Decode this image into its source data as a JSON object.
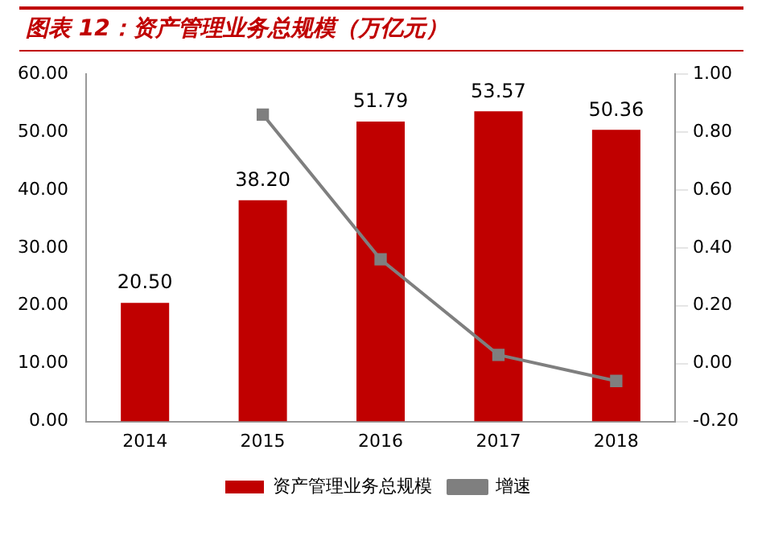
{
  "chart_data": {
    "type": "bar",
    "title": "图表 12：资产管理业务总规模（万亿元）",
    "categories": [
      "2014",
      "2015",
      "2016",
      "2017",
      "2018"
    ],
    "series": [
      {
        "name": "资产管理业务总规模",
        "color": "#c00000",
        "values": [
          20.5,
          38.2,
          51.79,
          53.57,
          50.36
        ],
        "value_labels": [
          "20.50",
          "38.20",
          "51.79",
          "53.57",
          "50.36"
        ]
      },
      {
        "name": "增速",
        "type": "line",
        "axis": "y2",
        "color": "#7f7f7f",
        "marker": "square",
        "values": [
          null,
          0.86,
          0.36,
          0.03,
          -0.06
        ]
      }
    ],
    "ylim": [
      0,
      60
    ],
    "yticks": [
      {
        "value": 0,
        "label": "0.00"
      },
      {
        "value": 10,
        "label": "10.00"
      },
      {
        "value": 20,
        "label": "20.00"
      },
      {
        "value": 30,
        "label": "30.00"
      },
      {
        "value": 40,
        "label": "40.00"
      },
      {
        "value": 50,
        "label": "50.00"
      },
      {
        "value": 60,
        "label": "60.00"
      }
    ],
    "y2lim": [
      -0.2,
      1
    ],
    "y2ticks": [
      {
        "value": -0.2,
        "label": "-0.20"
      },
      {
        "value": 0,
        "label": "0.00"
      },
      {
        "value": 0.2,
        "label": "0.20"
      },
      {
        "value": 0.4,
        "label": "0.40"
      },
      {
        "value": 0.6,
        "label": "0.60"
      },
      {
        "value": 0.8,
        "label": "0.80"
      },
      {
        "value": 1,
        "label": "1.00"
      }
    ],
    "grid": false,
    "legend": "bottom"
  }
}
